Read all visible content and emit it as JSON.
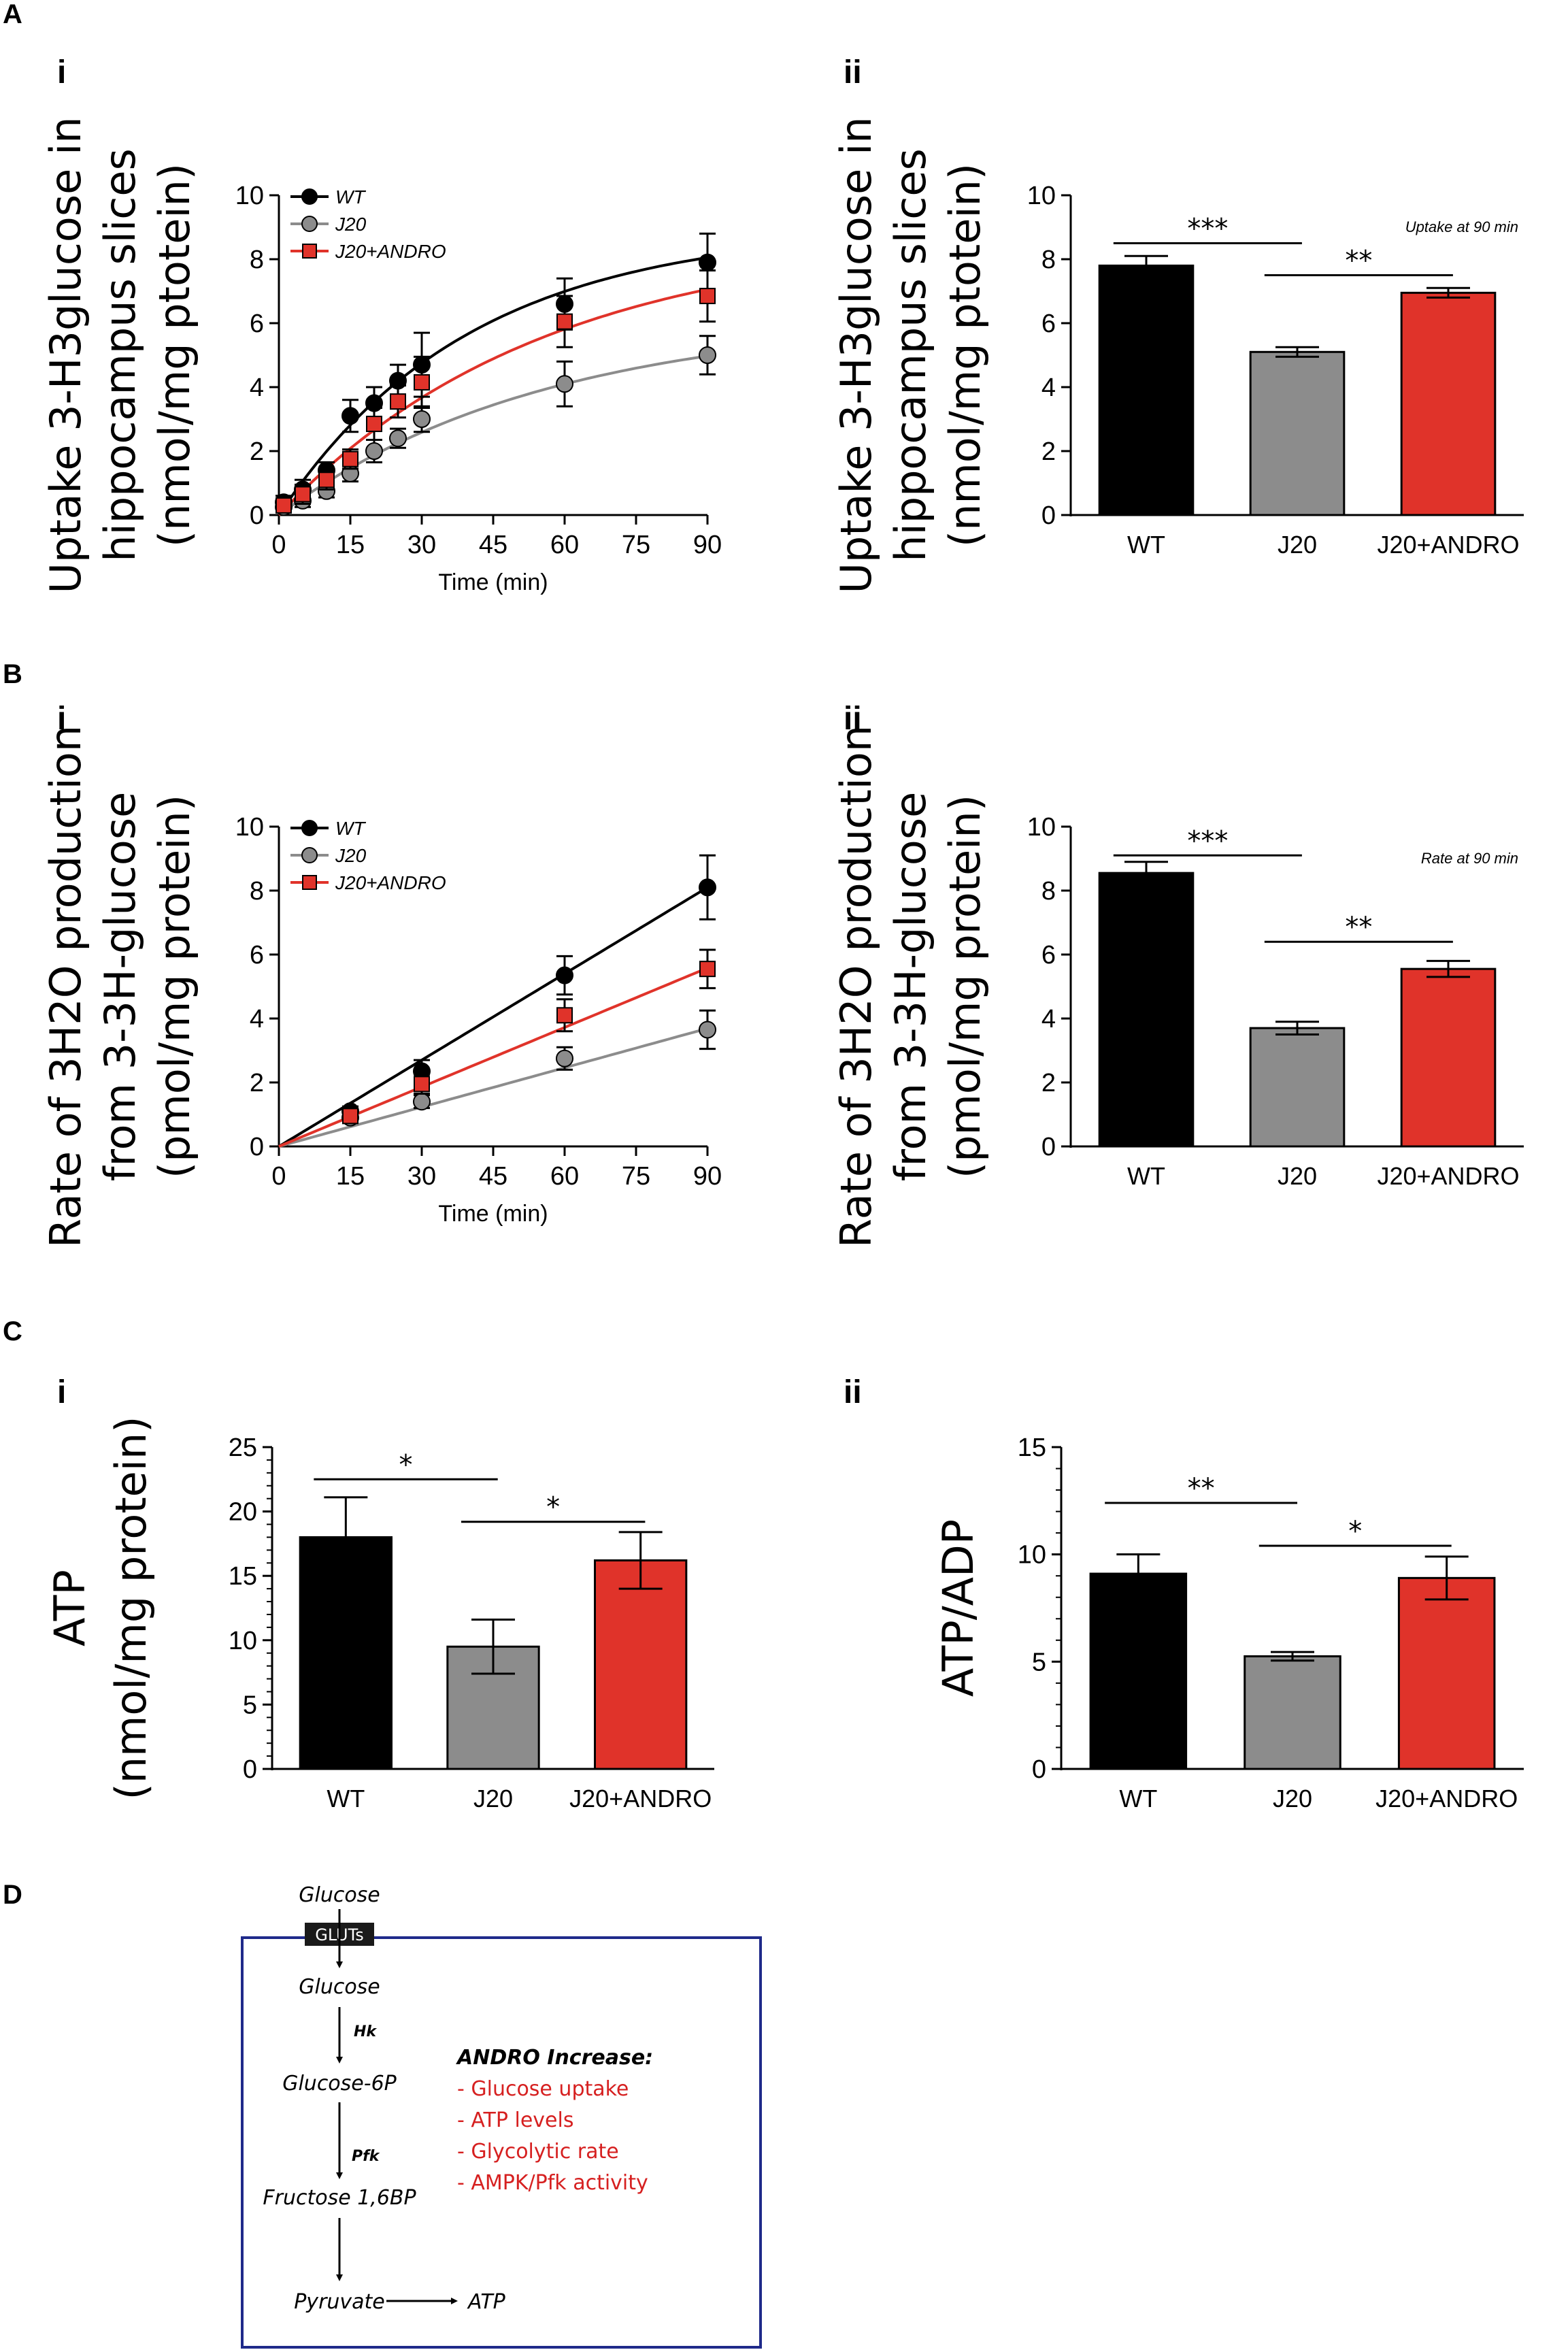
{
  "colors": {
    "wt": "#000000",
    "j20": "#8c8c8c",
    "andro": "#e0332a",
    "andro_text": "#d62020",
    "box": "#1f2a8a"
  },
  "panel_labels": {
    "A": "A",
    "B": "B",
    "C": "C",
    "D": "D",
    "i": "i",
    "ii": "ii"
  },
  "chart_data": [
    {
      "id": "Ai",
      "type": "line",
      "ylabel_lines": [
        "Uptake 3-H3glucose  in",
        "hippocampus slices",
        "(nmol/mg ptotein)"
      ],
      "xlabel": "Time (min)",
      "xlim": [
        0,
        90
      ],
      "ylim": [
        0,
        10
      ],
      "xticks": [
        "0",
        "15",
        "30",
        "45",
        "60",
        "75",
        "90"
      ],
      "yticks": [
        "0",
        "2",
        "4",
        "6",
        "8",
        "10"
      ],
      "legend": [
        "WT",
        "J20",
        "J20+ANDRO"
      ],
      "series": [
        {
          "name": "WT",
          "marker": "circle",
          "x": [
            1,
            5,
            10,
            15,
            20,
            25,
            30,
            60,
            90
          ],
          "y": [
            0.4,
            0.8,
            1.4,
            3.1,
            3.5,
            4.2,
            4.7,
            6.6,
            7.9
          ],
          "err": [
            0.2,
            0.3,
            0.25,
            0.5,
            0.5,
            0.5,
            1.0,
            0.8,
            0.9
          ],
          "fit": {
            "ymax": 9.0,
            "k": 0.025
          }
        },
        {
          "name": "J20",
          "marker": "circle",
          "x": [
            1,
            5,
            10,
            15,
            20,
            25,
            30,
            60,
            90
          ],
          "y": [
            0.25,
            0.45,
            0.75,
            1.3,
            2.0,
            2.4,
            3.0,
            4.1,
            5.0
          ],
          "err": [
            0.15,
            0.2,
            0.2,
            0.25,
            0.35,
            0.3,
            0.4,
            0.7,
            0.6
          ],
          "fit": {
            "ymax": 6.2,
            "k": 0.018
          }
        },
        {
          "name": "J20+ANDRO",
          "marker": "square",
          "x": [
            1,
            5,
            10,
            15,
            20,
            25,
            30,
            60,
            90
          ],
          "y": [
            0.3,
            0.65,
            1.1,
            1.75,
            2.85,
            3.55,
            4.15,
            6.05,
            6.85
          ],
          "err": [
            0.2,
            0.3,
            0.3,
            0.3,
            0.5,
            0.5,
            0.8,
            0.8,
            0.8
          ],
          "fit": {
            "ymax": 8.8,
            "k": 0.018
          }
        }
      ]
    },
    {
      "id": "Aii",
      "type": "bar",
      "ylabel_lines": [
        "Uptake 3-H3glucose in",
        "hippocampus slices",
        "(nmol/mg ptotein)"
      ],
      "categories": [
        "WT",
        "J20",
        "J20+ANDRO"
      ],
      "values": [
        7.8,
        5.1,
        6.95
      ],
      "err": [
        0.3,
        0.15,
        0.15
      ],
      "ylim": [
        0,
        10
      ],
      "yticks": [
        "0",
        "2",
        "4",
        "6",
        "8",
        "10"
      ],
      "annotation": "Uptake at 90 min",
      "sig": [
        {
          "from": 0,
          "to": 1,
          "label": "***",
          "y": 8.5
        },
        {
          "from": 1,
          "to": 2,
          "label": "**",
          "y": 7.5
        }
      ]
    },
    {
      "id": "Bi",
      "type": "line",
      "ylabel_lines": [
        "Rate of 3H2O production",
        "from 3-3H-glucose",
        "(pmol/mg protein)"
      ],
      "xlabel": "Time (min)",
      "xlim": [
        0,
        90
      ],
      "ylim": [
        0,
        10
      ],
      "xticks": [
        "0",
        "15",
        "30",
        "45",
        "60",
        "75",
        "90"
      ],
      "yticks": [
        "0",
        "2",
        "4",
        "6",
        "8",
        "10"
      ],
      "legend": [
        "WT",
        "J20",
        "J20+ANDRO"
      ],
      "series": [
        {
          "name": "WT",
          "marker": "circle",
          "x": [
            15,
            30,
            60,
            90
          ],
          "y": [
            1.1,
            2.35,
            5.35,
            8.1
          ],
          "err": [
            0.15,
            0.35,
            0.6,
            1.0
          ],
          "fit": {
            "slope": 0.09
          }
        },
        {
          "name": "J20",
          "marker": "circle",
          "x": [
            15,
            30,
            60,
            90
          ],
          "y": [
            0.9,
            1.4,
            2.75,
            3.65
          ],
          "err": [
            0.15,
            0.2,
            0.35,
            0.6
          ],
          "fit": {
            "slope": 0.041
          }
        },
        {
          "name": "J20+ANDRO",
          "marker": "square",
          "x": [
            15,
            30,
            60,
            90
          ],
          "y": [
            0.95,
            1.95,
            4.1,
            5.55
          ],
          "err": [
            0.15,
            0.3,
            0.5,
            0.6
          ],
          "fit": {
            "slope": 0.062
          }
        }
      ]
    },
    {
      "id": "Bii",
      "type": "bar",
      "ylabel_lines": [
        "Rate of 3H2O production",
        "from 3-3H-glucose",
        "(pmol/mg protein)"
      ],
      "categories": [
        "WT",
        "J20",
        "J20+ANDRO"
      ],
      "values": [
        8.55,
        3.7,
        5.55
      ],
      "err": [
        0.35,
        0.2,
        0.25
      ],
      "ylim": [
        0,
        10
      ],
      "yticks": [
        "0",
        "2",
        "4",
        "6",
        "8",
        "10"
      ],
      "annotation": "Rate at 90 min",
      "sig": [
        {
          "from": 0,
          "to": 1,
          "label": "***",
          "y": 9.1
        },
        {
          "from": 1,
          "to": 2,
          "label": "**",
          "y": 6.4
        }
      ]
    },
    {
      "id": "Ci",
      "type": "bar",
      "ylabel_lines": [
        "ATP",
        "(nmol/mg protein)"
      ],
      "categories": [
        "WT",
        "J20",
        "J20+ANDRO"
      ],
      "values": [
        18.0,
        9.5,
        16.2
      ],
      "err": [
        3.1,
        2.1,
        2.2
      ],
      "ylim": [
        0,
        25
      ],
      "yticks": [
        "0",
        "5",
        "10",
        "15",
        "20",
        "25"
      ],
      "minor": 1,
      "sig": [
        {
          "from": 0,
          "to": 1,
          "label": "*",
          "y": 22.5
        },
        {
          "from": 1,
          "to": 2,
          "label": "*",
          "y": 19.2
        }
      ]
    },
    {
      "id": "Cii",
      "type": "bar",
      "ylabel_lines": [
        "ATP/ADP"
      ],
      "categories": [
        "WT",
        "J20",
        "J20+ANDRO"
      ],
      "values": [
        9.1,
        5.25,
        8.9
      ],
      "err": [
        0.9,
        0.2,
        1.0
      ],
      "ylim": [
        0,
        15
      ],
      "yticks": [
        "0",
        "5",
        "10",
        "15"
      ],
      "minor": 1,
      "sig": [
        {
          "from": 0,
          "to": 1,
          "label": "**",
          "y": 12.4
        },
        {
          "from": 1,
          "to": 2,
          "label": "*",
          "y": 10.4
        }
      ]
    }
  ],
  "diagram": {
    "glucose_out": "Glucose",
    "gluts": "GLUTs",
    "glucose_in": "Glucose",
    "hk": "Hk",
    "g6p": "Glucose-6P",
    "pfk": "Pfk",
    "f16bp": "Fructose 1,6BP",
    "pyruvate": "Pyruvate",
    "atp": "ATP",
    "andro_title": "ANDRO Increase:",
    "andro_items": [
      "- Glucose uptake",
      "- ATP levels",
      "- Glycolytic rate",
      "- AMPK/Pfk activity"
    ]
  }
}
